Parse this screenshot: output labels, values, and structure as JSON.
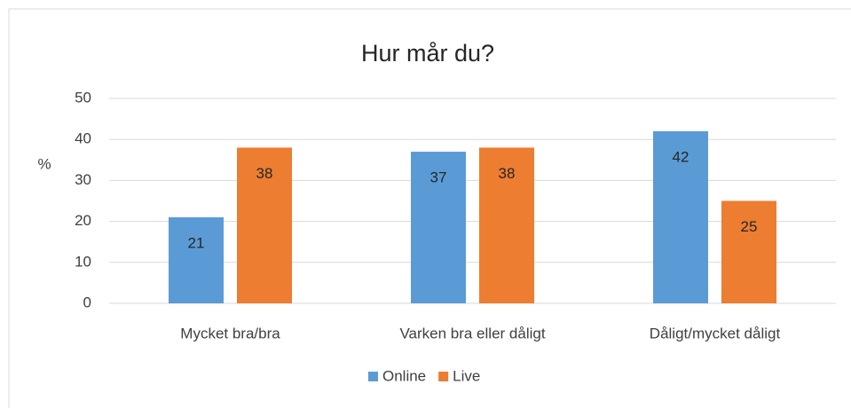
{
  "chart_data": {
    "type": "bar",
    "title": "Hur mår du?",
    "y_label": "%",
    "categories": [
      "Mycket bra/bra",
      "Varken bra eller dåligt",
      "Dåligt/mycket dåligt"
    ],
    "series": [
      {
        "name": "Online",
        "color": "#5b9bd5",
        "values": [
          21,
          37,
          42
        ]
      },
      {
        "name": "Live",
        "color": "#ed7d31",
        "values": [
          38,
          38,
          25
        ]
      }
    ],
    "ylim": [
      0,
      50
    ],
    "yticks": [
      0,
      10,
      20,
      30,
      40,
      50
    ],
    "grid": true,
    "legend": "bottom"
  }
}
